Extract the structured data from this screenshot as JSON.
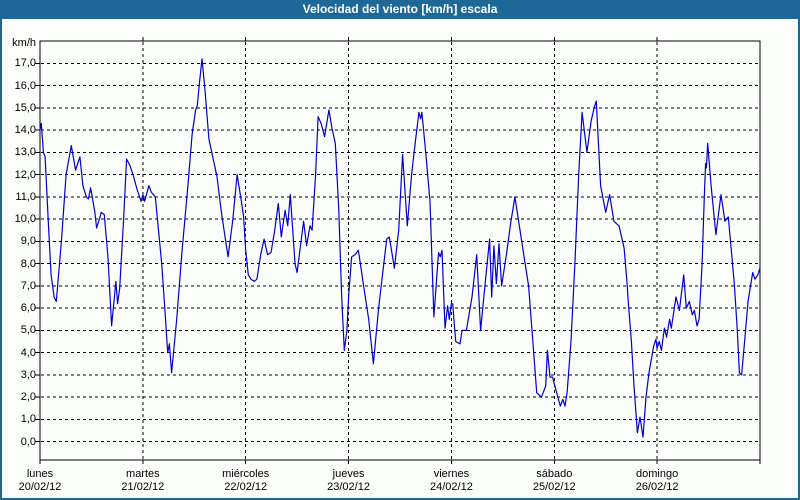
{
  "window": {
    "title": "Velocidad del viento [km/h] escala"
  },
  "colors": {
    "titlebar": "#1e6898",
    "window_border": "#1e6898",
    "line": "#0000cc",
    "grid": "#000000",
    "background": "#fcfefb"
  },
  "chart_data": {
    "type": "line",
    "title": "Velocidad del viento [km/h] escala",
    "grid": "dashed-black",
    "legend": "none",
    "y_axis": {
      "unit_label": "km/h",
      "min": 0.0,
      "max": 17.0,
      "step": 1.0,
      "tick_labels_top_to_bottom": [
        "17,0",
        "16,0",
        "15,0",
        "14,0",
        "13,0",
        "12,0",
        "11,0",
        "10,0",
        "9,0",
        "8,0",
        "7,0",
        "6,0",
        "5,0",
        "4,0",
        "3,0",
        "2,0",
        "1,0",
        "0,0"
      ]
    },
    "x_axis": {
      "range_hours": [
        0,
        168
      ],
      "days": [
        {
          "name": "lunes",
          "date": "20/02/12"
        },
        {
          "name": "martes",
          "date": "21/02/12"
        },
        {
          "name": "miércoles",
          "date": "22/02/12"
        },
        {
          "name": "jueves",
          "date": "23/02/12"
        },
        {
          "name": "viernes",
          "date": "24/02/12"
        },
        {
          "name": "sábado",
          "date": "25/02/12"
        },
        {
          "name": "domingo",
          "date": "26/02/12"
        }
      ]
    },
    "series": [
      {
        "name": "Velocidad del viento [km/h]",
        "color": "#0000cc",
        "points_hours_kmh": [
          [
            0,
            14.0
          ],
          [
            0.3,
            14.3
          ],
          [
            0.8,
            13.0
          ],
          [
            1.2,
            12.8
          ],
          [
            2.0,
            9.6
          ],
          [
            2.6,
            7.5
          ],
          [
            3.3,
            6.5
          ],
          [
            3.8,
            6.3
          ],
          [
            5.0,
            9.0
          ],
          [
            6.1,
            12.0
          ],
          [
            7.3,
            13.3
          ],
          [
            8.3,
            12.2
          ],
          [
            9.3,
            12.8
          ],
          [
            10.0,
            11.5
          ],
          [
            10.8,
            11.0
          ],
          [
            11.3,
            10.9
          ],
          [
            11.8,
            11.4
          ],
          [
            12.8,
            10.3
          ],
          [
            13.2,
            9.6
          ],
          [
            13.7,
            9.9
          ],
          [
            14.3,
            10.3
          ],
          [
            15.0,
            10.2
          ],
          [
            15.9,
            8.2
          ],
          [
            16.7,
            5.2
          ],
          [
            17.7,
            7.2
          ],
          [
            18.1,
            6.2
          ],
          [
            18.6,
            6.9
          ],
          [
            19.5,
            10.0
          ],
          [
            20.2,
            12.7
          ],
          [
            21.0,
            12.4
          ],
          [
            21.7,
            12.0
          ],
          [
            22.7,
            11.3
          ],
          [
            23.6,
            10.8
          ],
          [
            24.0,
            11.1
          ],
          [
            24.4,
            10.8
          ],
          [
            25.4,
            11.5
          ],
          [
            26.0,
            11.2
          ],
          [
            26.9,
            11.0
          ],
          [
            28.4,
            8.0
          ],
          [
            29.2,
            5.8
          ],
          [
            29.8,
            4.0
          ],
          [
            30.2,
            4.4
          ],
          [
            30.7,
            3.1
          ],
          [
            31.9,
            5.5
          ],
          [
            33.1,
            8.5
          ],
          [
            34.5,
            11.5
          ],
          [
            35.5,
            13.8
          ],
          [
            36.3,
            14.9
          ],
          [
            36.7,
            15.1
          ],
          [
            37.2,
            16.1
          ],
          [
            37.8,
            17.2
          ],
          [
            38.5,
            15.8
          ],
          [
            39.4,
            13.6
          ],
          [
            41.3,
            11.9
          ],
          [
            42.4,
            10.2
          ],
          [
            43.9,
            8.3
          ],
          [
            45.0,
            10.0
          ],
          [
            46.0,
            12.0
          ],
          [
            47.0,
            10.8
          ],
          [
            47.5,
            10.1
          ],
          [
            48.0,
            8.6
          ],
          [
            48.6,
            7.5
          ],
          [
            49.2,
            7.3
          ],
          [
            50.0,
            7.2
          ],
          [
            50.6,
            7.3
          ],
          [
            51.5,
            8.4
          ],
          [
            52.3,
            9.1
          ],
          [
            53.1,
            8.4
          ],
          [
            53.9,
            8.5
          ],
          [
            54.7,
            9.4
          ],
          [
            55.6,
            10.7
          ],
          [
            56.3,
            9.2
          ],
          [
            57.2,
            10.4
          ],
          [
            57.8,
            9.7
          ],
          [
            58.4,
            11.1
          ],
          [
            59.5,
            8.0
          ],
          [
            60.0,
            7.6
          ],
          [
            61.5,
            9.9
          ],
          [
            62.2,
            8.8
          ],
          [
            63.0,
            9.7
          ],
          [
            63.5,
            9.5
          ],
          [
            64.3,
            12.0
          ],
          [
            64.9,
            14.6
          ],
          [
            65.6,
            14.3
          ],
          [
            66.4,
            13.7
          ],
          [
            67.4,
            14.9
          ],
          [
            68.1,
            14.1
          ],
          [
            68.9,
            13.4
          ],
          [
            69.7,
            10.5
          ],
          [
            70.4,
            6.5
          ],
          [
            71.0,
            4.1
          ],
          [
            71.6,
            5.0
          ],
          [
            72.0,
            6.5
          ],
          [
            72.7,
            8.3
          ],
          [
            73.5,
            8.4
          ],
          [
            74.3,
            8.6
          ],
          [
            75.5,
            7.0
          ],
          [
            76.7,
            5.5
          ],
          [
            77.8,
            3.5
          ],
          [
            79.0,
            6.0
          ],
          [
            80.9,
            9.1
          ],
          [
            81.5,
            9.2
          ],
          [
            82.7,
            7.8
          ],
          [
            83.7,
            9.5
          ],
          [
            84.6,
            12.9
          ],
          [
            85.7,
            9.7
          ],
          [
            86.7,
            12.0
          ],
          [
            87.6,
            13.5
          ],
          [
            88.4,
            14.8
          ],
          [
            88.8,
            14.5
          ],
          [
            89.1,
            14.8
          ],
          [
            90.0,
            13.0
          ],
          [
            91.0,
            10.8
          ],
          [
            91.4,
            8.5
          ],
          [
            91.9,
            5.6
          ],
          [
            92.6,
            7.5
          ],
          [
            93.0,
            8.5
          ],
          [
            93.4,
            8.3
          ],
          [
            93.8,
            8.6
          ],
          [
            94.5,
            5.1
          ],
          [
            95.1,
            6.1
          ],
          [
            95.5,
            5.5
          ],
          [
            96.0,
            6.2
          ],
          [
            96.3,
            6.2
          ],
          [
            97.0,
            4.5
          ],
          [
            98.0,
            4.4
          ],
          [
            98.5,
            5.0
          ],
          [
            99.5,
            5.0
          ],
          [
            100.8,
            6.5
          ],
          [
            101.9,
            8.4
          ],
          [
            102.8,
            5.0
          ],
          [
            103.8,
            7.0
          ],
          [
            104.9,
            9.1
          ],
          [
            105.4,
            6.5
          ],
          [
            105.9,
            8.8
          ],
          [
            106.5,
            7.1
          ],
          [
            107.1,
            8.9
          ],
          [
            107.7,
            7.0
          ],
          [
            108.9,
            8.5
          ],
          [
            109.8,
            9.8
          ],
          [
            110.8,
            11.0
          ],
          [
            112.4,
            9.0
          ],
          [
            114.0,
            7.0
          ],
          [
            115.2,
            4.0
          ],
          [
            115.9,
            2.2
          ],
          [
            117.0,
            2.0
          ],
          [
            118.0,
            2.5
          ],
          [
            118.4,
            4.1
          ],
          [
            119.0,
            2.9
          ],
          [
            119.6,
            2.9
          ],
          [
            120.0,
            2.6
          ],
          [
            121.4,
            1.6
          ],
          [
            122.0,
            1.9
          ],
          [
            122.5,
            1.6
          ],
          [
            123.0,
            2.2
          ],
          [
            123.9,
            4.5
          ],
          [
            124.8,
            8.0
          ],
          [
            125.7,
            12.0
          ],
          [
            126.5,
            14.8
          ],
          [
            127.6,
            13.0
          ],
          [
            128.6,
            14.4
          ],
          [
            129.3,
            15.0
          ],
          [
            129.8,
            15.3
          ],
          [
            130.8,
            11.5
          ],
          [
            132.0,
            10.3
          ],
          [
            132.9,
            11.1
          ],
          [
            133.9,
            9.9
          ],
          [
            135.1,
            9.7
          ],
          [
            136.3,
            8.7
          ],
          [
            137.0,
            7.1
          ],
          [
            137.3,
            6.2
          ],
          [
            138.0,
            4.5
          ],
          [
            138.6,
            2.5
          ],
          [
            139.4,
            0.4
          ],
          [
            140.0,
            1.1
          ],
          [
            140.7,
            0.2
          ],
          [
            141.4,
            2.0
          ],
          [
            142.1,
            3.1
          ],
          [
            143.2,
            4.3
          ],
          [
            143.7,
            4.6
          ],
          [
            144.0,
            4.2
          ],
          [
            144.5,
            4.5
          ],
          [
            145.0,
            4.1
          ],
          [
            145.7,
            5.1
          ],
          [
            146.2,
            4.7
          ],
          [
            146.9,
            5.5
          ],
          [
            147.3,
            5.1
          ],
          [
            148.4,
            6.5
          ],
          [
            149.2,
            5.9
          ],
          [
            150.2,
            7.5
          ],
          [
            150.8,
            6.0
          ],
          [
            151.5,
            6.3
          ],
          [
            152.2,
            5.7
          ],
          [
            152.7,
            5.9
          ],
          [
            153.3,
            5.2
          ],
          [
            153.8,
            5.5
          ],
          [
            154.5,
            8.0
          ],
          [
            155.0,
            11.0
          ],
          [
            155.3,
            12.5
          ],
          [
            155.5,
            12.3
          ],
          [
            155.8,
            13.4
          ],
          [
            156.6,
            11.5
          ],
          [
            157.7,
            9.3
          ],
          [
            158.9,
            11.1
          ],
          [
            159.8,
            9.9
          ],
          [
            160.6,
            10.1
          ],
          [
            162.0,
            7.1
          ],
          [
            162.7,
            5.0
          ],
          [
            163.2,
            3.1
          ],
          [
            163.7,
            3.0
          ],
          [
            164.4,
            4.5
          ],
          [
            165.2,
            6.3
          ],
          [
            166.3,
            7.6
          ],
          [
            166.8,
            7.3
          ],
          [
            167.5,
            7.5
          ],
          [
            168.0,
            7.8
          ]
        ]
      }
    ]
  }
}
